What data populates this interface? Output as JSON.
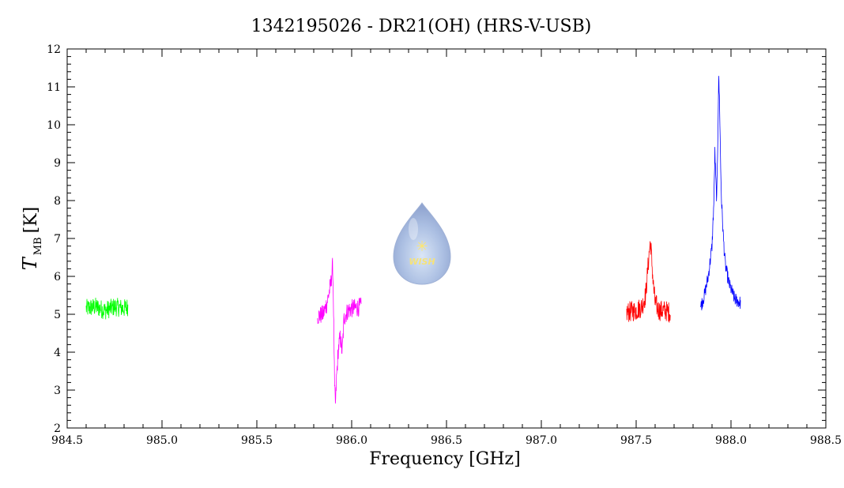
{
  "chart_data": {
    "type": "line",
    "title": "1342195026 - DR21(OH) (HRS-V-USB)",
    "xlabel": "Frequency [GHz]",
    "ylabel_main": "T",
    "ylabel_sub": "MB",
    "ylabel_unit": "[K]",
    "xlim": [
      984.5,
      988.5
    ],
    "ylim": [
      2,
      12
    ],
    "x_ticks": [
      "984.5",
      "985.0",
      "985.5",
      "986.0",
      "986.5",
      "987.0",
      "987.5",
      "988.0",
      "988.5"
    ],
    "y_ticks": [
      "2",
      "3",
      "4",
      "5",
      "6",
      "7",
      "8",
      "9",
      "10",
      "11",
      "12"
    ],
    "grid": false,
    "series": [
      {
        "color": "#00ff00",
        "x": [
          984.6,
          984.65,
          984.7,
          984.75,
          984.8,
          984.82
        ],
        "y": [
          5.15,
          5.2,
          5.1,
          5.2,
          5.15,
          5.2
        ],
        "noise": 0.25
      },
      {
        "color": "#ff00ff",
        "x": [
          985.82,
          985.85,
          985.87,
          985.89,
          985.9,
          985.905,
          985.91,
          985.915,
          985.92,
          985.93,
          985.94,
          985.95,
          985.96,
          985.98,
          986.0,
          986.05
        ],
        "y": [
          4.95,
          5.0,
          5.3,
          5.8,
          6.3,
          5.0,
          3.0,
          2.6,
          3.3,
          4.1,
          4.4,
          4.0,
          4.9,
          5.1,
          5.15,
          5.2
        ],
        "noise": 0.25
      },
      {
        "color": "#ff0000",
        "x": [
          987.45,
          987.5,
          987.53,
          987.55,
          987.56,
          987.57,
          987.575,
          987.58,
          987.59,
          987.6,
          987.62,
          987.65,
          987.68
        ],
        "y": [
          5.05,
          5.1,
          5.2,
          5.5,
          6.1,
          6.7,
          6.9,
          6.6,
          5.8,
          5.3,
          5.1,
          5.1,
          5.05
        ],
        "noise": 0.28
      },
      {
        "color": "#0000ff",
        "x": [
          987.84,
          987.86,
          987.88,
          987.9,
          987.91,
          987.915,
          987.92,
          987.925,
          987.93,
          987.935,
          987.94,
          987.945,
          987.95,
          987.96,
          987.97,
          987.99,
          988.02,
          988.05
        ],
        "y": [
          5.2,
          5.5,
          6.0,
          6.8,
          8.0,
          9.3,
          8.5,
          8.0,
          9.5,
          11.3,
          10.5,
          9.0,
          8.0,
          7.0,
          6.3,
          5.8,
          5.4,
          5.3
        ],
        "noise": 0.18
      }
    ]
  }
}
